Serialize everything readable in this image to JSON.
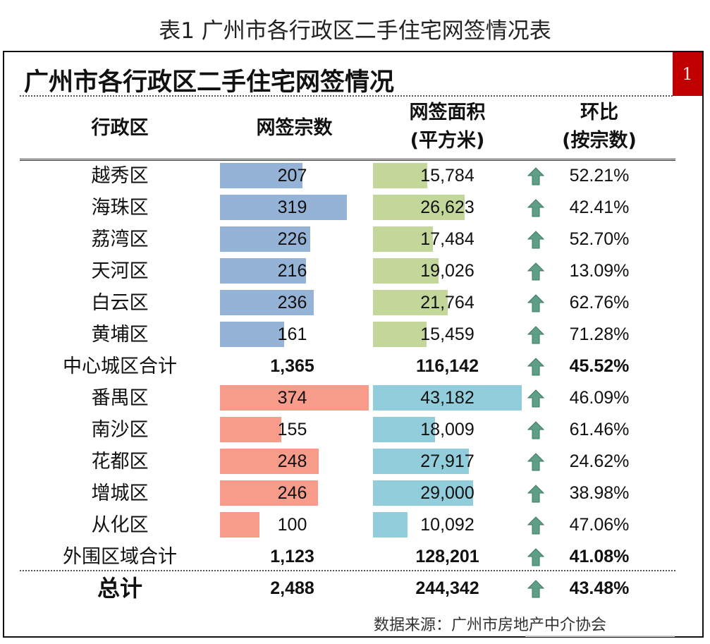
{
  "caption": "表1  广州市各行政区二手住宅网签情况表",
  "title": "广州市各行政区二手住宅网签情况",
  "badge": "1",
  "headers": {
    "district": "行政区",
    "count": "网签宗数",
    "area_line1": "网签面积",
    "area_line2": "(平方米)",
    "ratio_line1": "环比",
    "ratio_line2": "(按宗数)"
  },
  "colors": {
    "core_count_bar": "#95b3d7",
    "core_area_bar": "#c4d79b",
    "outer_count_bar": "#f79c8a",
    "outer_area_bar": "#92cddc",
    "arrow_up": "#5f9f86",
    "badge": "#c00000"
  },
  "scale": {
    "count_max": 374,
    "area_max": 43182
  },
  "core_rows": [
    {
      "name": "越秀区",
      "count": 207,
      "count_label": "207",
      "area": 15784,
      "area_label": "15,784",
      "trend": "up",
      "ratio": "52.21%"
    },
    {
      "name": "海珠区",
      "count": 319,
      "count_label": "319",
      "area": 26623,
      "area_label": "26,623",
      "trend": "up",
      "ratio": "42.41%"
    },
    {
      "name": "荔湾区",
      "count": 226,
      "count_label": "226",
      "area": 17484,
      "area_label": "17,484",
      "trend": "up",
      "ratio": "52.70%"
    },
    {
      "name": "天河区",
      "count": 216,
      "count_label": "216",
      "area": 19026,
      "area_label": "19,026",
      "trend": "up",
      "ratio": "13.09%"
    },
    {
      "name": "白云区",
      "count": 236,
      "count_label": "236",
      "area": 21764,
      "area_label": "21,764",
      "trend": "up",
      "ratio": "62.76%"
    },
    {
      "name": "黄埔区",
      "count": 161,
      "count_label": "161",
      "area": 15459,
      "area_label": "15,459",
      "trend": "up",
      "ratio": "71.28%"
    }
  ],
  "core_total": {
    "name": "中心城区合计",
    "count_label": "1,365",
    "area_label": "116,142",
    "trend": "up",
    "ratio": "45.52%"
  },
  "outer_rows": [
    {
      "name": "番禺区",
      "count": 374,
      "count_label": "374",
      "area": 43182,
      "area_label": "43,182",
      "trend": "up",
      "ratio": "46.09%"
    },
    {
      "name": "南沙区",
      "count": 155,
      "count_label": "155",
      "area": 18009,
      "area_label": "18,009",
      "trend": "up",
      "ratio": "61.46%"
    },
    {
      "name": "花都区",
      "count": 248,
      "count_label": "248",
      "area": 27917,
      "area_label": "27,917",
      "trend": "up",
      "ratio": "24.62%"
    },
    {
      "name": "增城区",
      "count": 246,
      "count_label": "246",
      "area": 29000,
      "area_label": "29,000",
      "trend": "up",
      "ratio": "38.98%"
    },
    {
      "name": "从化区",
      "count": 100,
      "count_label": "100",
      "area": 10092,
      "area_label": "10,092",
      "trend": "up",
      "ratio": "47.06%"
    }
  ],
  "outer_total": {
    "name": "外围区域合计",
    "count_label": "1,123",
    "area_label": "128,201",
    "trend": "up",
    "ratio": "41.08%"
  },
  "grand_total": {
    "name": "总计",
    "count_label": "2,488",
    "area_label": "244,342",
    "trend": "up",
    "ratio": "43.48%"
  },
  "source": "数据来源：广州市房地产中介协会"
}
